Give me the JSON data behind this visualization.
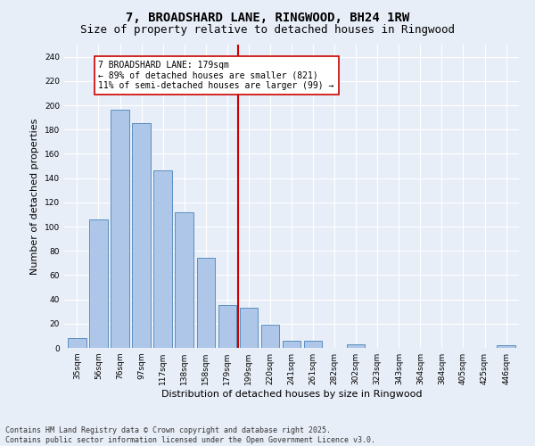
{
  "title": "7, BROADSHARD LANE, RINGWOOD, BH24 1RW",
  "subtitle": "Size of property relative to detached houses in Ringwood",
  "xlabel": "Distribution of detached houses by size in Ringwood",
  "ylabel": "Number of detached properties",
  "categories": [
    "35sqm",
    "56sqm",
    "76sqm",
    "97sqm",
    "117sqm",
    "138sqm",
    "158sqm",
    "179sqm",
    "199sqm",
    "220sqm",
    "241sqm",
    "261sqm",
    "282sqm",
    "302sqm",
    "323sqm",
    "343sqm",
    "364sqm",
    "384sqm",
    "405sqm",
    "425sqm",
    "446sqm"
  ],
  "values": [
    8,
    106,
    196,
    185,
    146,
    112,
    74,
    35,
    33,
    19,
    6,
    6,
    0,
    3,
    0,
    0,
    0,
    0,
    0,
    0,
    2
  ],
  "bar_color": "#aec6e8",
  "bar_edge_color": "#5a8fc0",
  "highlight_index": 7,
  "highlight_line_color": "#cc0000",
  "annotation_text": "7 BROADSHARD LANE: 179sqm\n← 89% of detached houses are smaller (821)\n11% of semi-detached houses are larger (99) →",
  "annotation_box_color": "#ffffff",
  "annotation_box_edge_color": "#cc0000",
  "ylim": [
    0,
    250
  ],
  "yticks": [
    0,
    20,
    40,
    60,
    80,
    100,
    120,
    140,
    160,
    180,
    200,
    220,
    240
  ],
  "bg_color": "#e8eef8",
  "grid_color": "#ffffff",
  "footer_text": "Contains HM Land Registry data © Crown copyright and database right 2025.\nContains public sector information licensed under the Open Government Licence v3.0.",
  "title_fontsize": 10,
  "subtitle_fontsize": 9,
  "axis_label_fontsize": 8,
  "tick_fontsize": 6.5,
  "annotation_fontsize": 7,
  "footer_fontsize": 6
}
